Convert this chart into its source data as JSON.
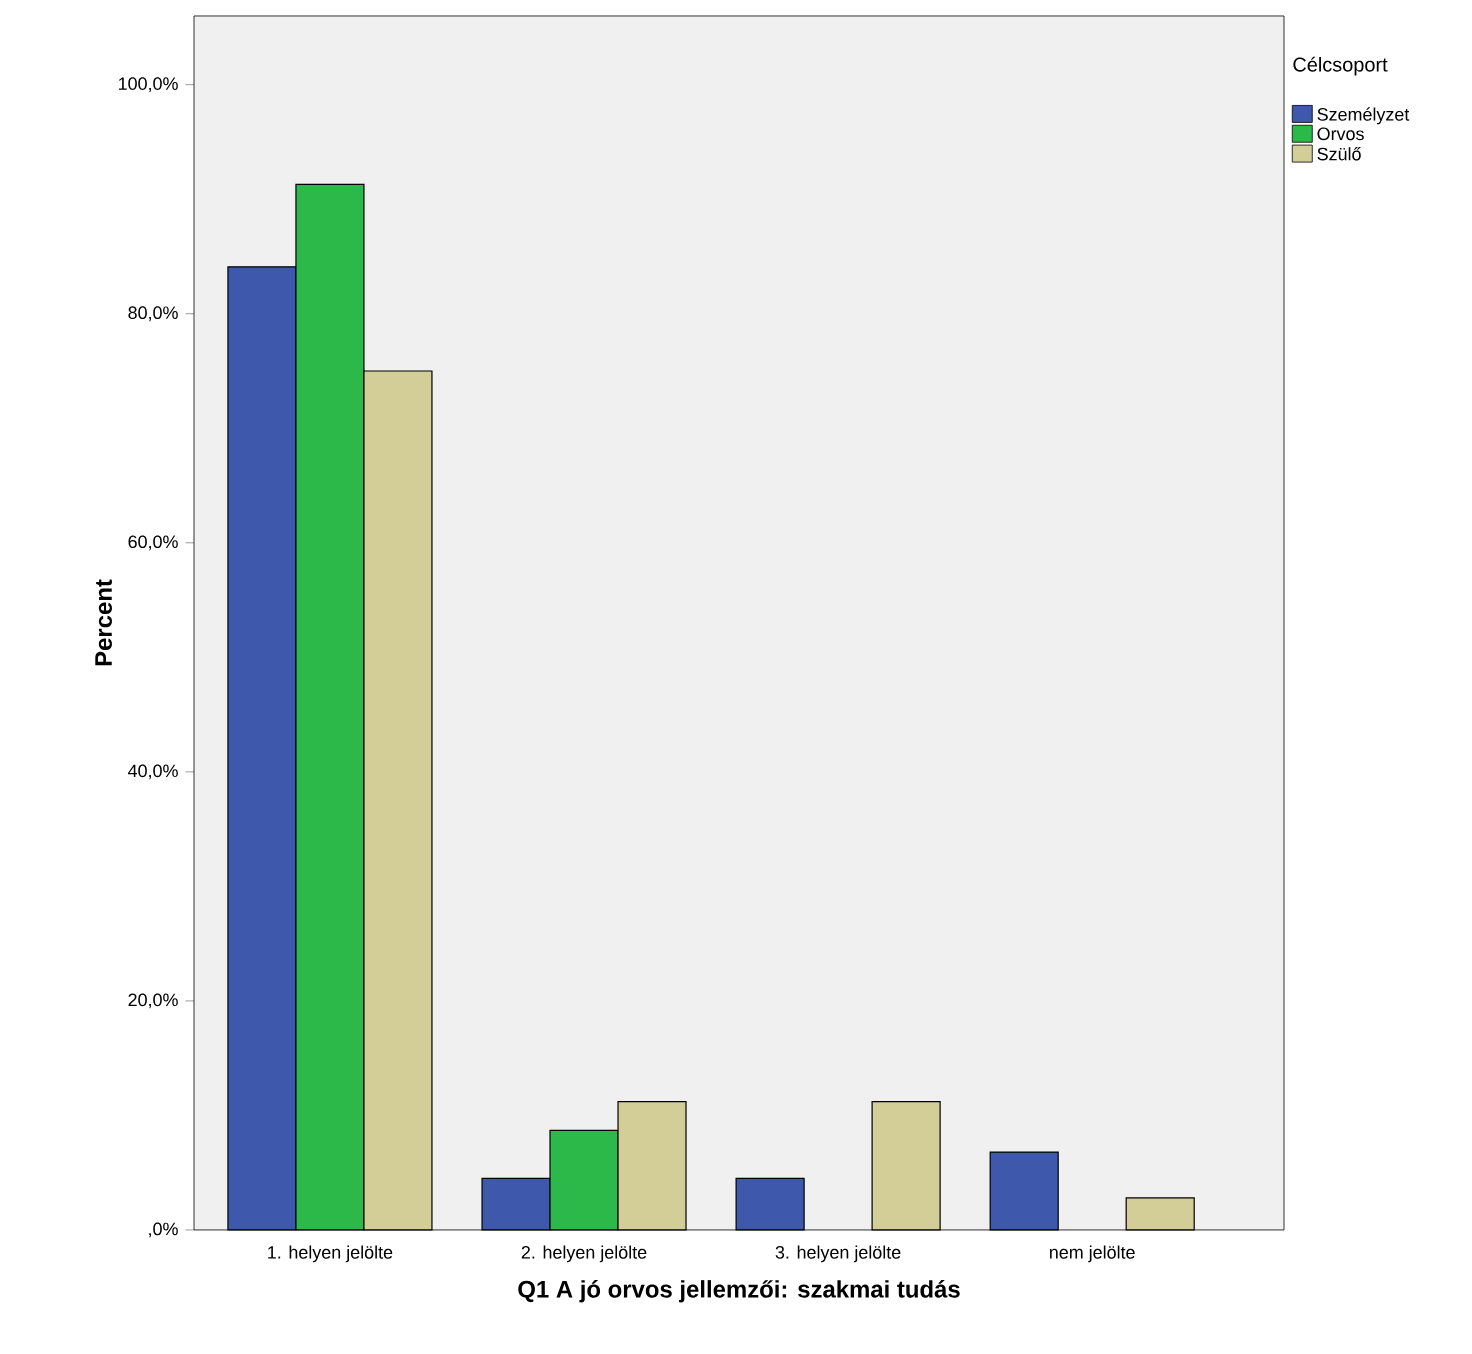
{
  "chart_data": {
    "type": "bar",
    "xlabel": "Q1 A jó orvos jellemzői: szakmai tudás",
    "ylabel": "Percent",
    "legend_title": "Célcsoport",
    "categories": [
      "1. helyen jelölte",
      "2. helyen jelölte",
      "3. helyen jelölte",
      "nem jelölte"
    ],
    "series": [
      {
        "name": "Személyzet",
        "color": "#3e58ac",
        "values": [
          84.1,
          4.5,
          4.5,
          6.8
        ]
      },
      {
        "name": "Orvos",
        "color": "#2db84a",
        "values": [
          91.3,
          8.7,
          null,
          null
        ]
      },
      {
        "name": "Szülő",
        "color": "#d3ce97",
        "values": [
          75.0,
          11.2,
          11.2,
          2.8
        ]
      }
    ],
    "ylim": [
      0,
      106
    ],
    "yticks": [
      {
        "value": 0,
        "label": ",0%"
      },
      {
        "value": 20,
        "label": "20,0%"
      },
      {
        "value": 40,
        "label": "40,0%"
      },
      {
        "value": 60,
        "label": "60,0%"
      },
      {
        "value": 80,
        "label": "80,0%"
      },
      {
        "value": 100,
        "label": "100,0%"
      }
    ],
    "legend": "right",
    "grid": false
  }
}
